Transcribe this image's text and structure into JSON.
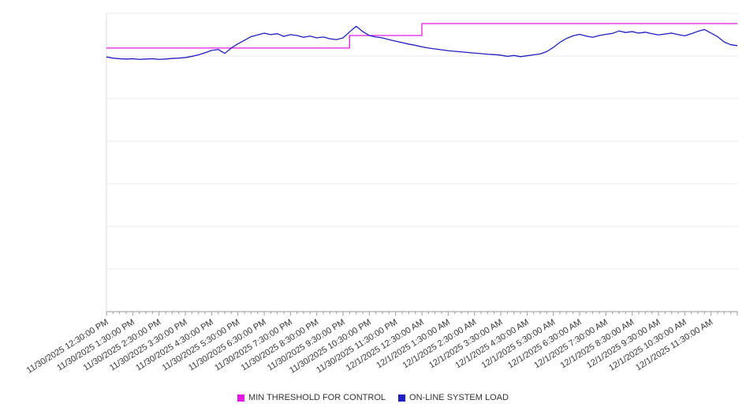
{
  "chart_data": {
    "type": "line",
    "title": "",
    "xlabel": "",
    "ylabel": "",
    "x_start": "11/30/2025 12:30:00 PM",
    "x_end": "12/1/2025 12:30:00 PM",
    "interval_minutes": 15,
    "x_tick_labels": [
      "11/30/2025 12:30:00 PM",
      "11/30/2025 1:30:00 PM",
      "11/30/2025 2:30:00 PM",
      "11/30/2025 3:30:00 PM",
      "11/30/2025 4:30:00 PM",
      "11/30/2025 5:30:00 PM",
      "11/30/2025 6:30:00 PM",
      "11/30/2025 7:30:00 PM",
      "11/30/2025 8:30:00 PM",
      "11/30/2025 9:30:00 PM",
      "11/30/2025 10:30:00 PM",
      "11/30/2025 11:30:00 PM",
      "12/1/2025 12:30:00 AM",
      "12/1/2025 1:30:00 AM",
      "12/1/2025 2:30:00 AM",
      "12/1/2025 3:30:00 AM",
      "12/1/2025 4:30:00 AM",
      "12/1/2025 5:30:00 AM",
      "12/1/2025 6:30:00 AM",
      "12/1/2025 7:30:00 AM",
      "12/1/2025 8:30:00 AM",
      "12/1/2025 9:30:00 AM",
      "12/1/2025 10:30:00 AM",
      "12/1/2025 11:30:00 AM"
    ],
    "ylim": [
      0,
      100
    ],
    "y_gridline_count": 8,
    "grid": true,
    "legend_position": "bottom",
    "series": [
      {
        "name": "MIN THRESHOLD FOR CONTROL",
        "color": "#e31ae3",
        "type": "step",
        "steps": [
          {
            "start_index": 0,
            "value": 88.4
          },
          {
            "start_index": 37,
            "value": 92.6
          },
          {
            "start_index": 48,
            "value": 96.6
          }
        ],
        "end_index": 96
      },
      {
        "name": "ON-LINE SYSTEM LOAD",
        "color": "#1f1fc2",
        "type": "line",
        "values": [
          85.4,
          85.0,
          84.8,
          84.7,
          84.8,
          84.6,
          84.7,
          84.8,
          84.6,
          84.7,
          84.9,
          85.0,
          85.2,
          85.6,
          86.1,
          86.8,
          87.6,
          87.9,
          86.6,
          88.4,
          89.8,
          91.0,
          92.2,
          92.8,
          93.4,
          92.9,
          93.2,
          92.3,
          92.9,
          92.6,
          92.0,
          92.4,
          91.8,
          92.1,
          91.5,
          91.2,
          91.8,
          93.8,
          95.7,
          93.9,
          92.6,
          92.1,
          91.8,
          91.2,
          90.7,
          90.2,
          89.7,
          89.3,
          88.8,
          88.4,
          88.1,
          87.8,
          87.5,
          87.3,
          87.1,
          86.9,
          86.7,
          86.5,
          86.3,
          86.2,
          86.0,
          85.6,
          85.9,
          85.5,
          85.8,
          86.1,
          86.4,
          87.2,
          88.6,
          90.3,
          91.6,
          92.5,
          93.0,
          92.4,
          92.0,
          92.6,
          93.0,
          93.3,
          94.1,
          93.6,
          93.9,
          93.4,
          93.7,
          93.2,
          92.8,
          93.1,
          93.4,
          92.9,
          92.5,
          93.2,
          94.0,
          94.6,
          93.4,
          92.2,
          90.4,
          89.5,
          89.2
        ]
      }
    ]
  }
}
